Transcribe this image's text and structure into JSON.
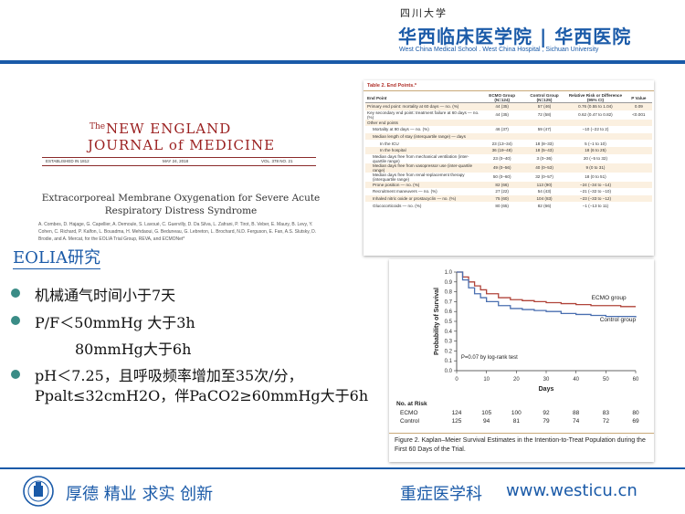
{
  "header": {
    "school_small": "四川大学",
    "hospital_name": "华西临床医学院 | 华西医院",
    "hospital_en": "West China Medical School . West China Hospital , Sichuan University"
  },
  "journal": {
    "the": "The",
    "title_line1": "NEW ENGLAND",
    "title_line2": "JOURNAL of MEDICINE",
    "established": "ESTABLISHED IN 1812",
    "date": "MAY 24, 2018",
    "volume": "VOL. 378  NO. 21",
    "article_title_1": "Extracorporeal Membrane Oxygenation for Severe Acute",
    "article_title_2": "Respiratory Distress Syndrome",
    "authors": "A. Combes, D. Hajage, G. Capellier, A. Demoule, S. Lavoué, C. Guervilly, D. Da Silva, L. Zafrani, P. Tirot, B. Veber, E. Maury, B. Levy, Y. Cohen, C. Richard, P. Kalfon, L. Bouadma, H. Mehdaoui, G. Beduneau, G. Lebreton, L. Brochard, N.D. Ferguson, E. Fan, A.S. Slutsky, D. Brodie, and A. Mercat, for the EOLIA Trial Group, REVA, and ECMONet*"
  },
  "table": {
    "caption": "Table 2. End Points.*",
    "headers": [
      "End Point",
      "ECMO Group (N=124)",
      "Control Group (N=125)",
      "Relative Risk or Difference (95% CI)",
      "P Value"
    ],
    "rows": [
      [
        "Primary end point: mortality at 60 days — no. (%)",
        "44 (35)",
        "57 (46)",
        "0.76 (0.55 to 1.04)",
        "0.09"
      ],
      [
        "Key secondary end point: treatment failure at 60 days — no. (%)",
        "44 (35)",
        "72 (58)",
        "0.62 (0.47 to 0.82)",
        "<0.001"
      ],
      [
        "Other end points",
        "",
        "",
        "",
        ""
      ],
      [
        "Mortality at 90 days — no. (%)",
        "46 (37)",
        "59 (47)",
        "−10 (−22 to 2)",
        ""
      ],
      [
        "Median length of stay (interquartile range) — days",
        "",
        "",
        "",
        ""
      ],
      [
        "In the ICU",
        "23 (13–34)",
        "18 (8–33)",
        "5 (−1 to 10)",
        ""
      ],
      [
        "In the hospital",
        "36 (19–48)",
        "18 (5–43)",
        "18 (6 to 25)",
        ""
      ],
      [
        "Median days free from mechanical ventilation (inter-quartile range)",
        "23 (0–40)",
        "3 (0–36)",
        "20 (−5 to 32)",
        ""
      ],
      [
        "Median days free from vasopressor use (inter-quartile range)",
        "49 (0–56)",
        "40 (0–53)",
        "9 (0 to 31)",
        ""
      ],
      [
        "Median days free from renal-replacement therapy (interquartile range)",
        "50 (0–60)",
        "32 (0–57)",
        "18 (0 to 51)",
        ""
      ],
      [
        "Prone position — no. (%)",
        "82 (66)",
        "113 (90)",
        "−24 (−34 to −14)",
        ""
      ],
      [
        "Recruitment maneuvers — no. (%)",
        "27 (22)",
        "54 (43)",
        "−21 (−32 to −10)",
        ""
      ],
      [
        "Inhaled nitric oxide or prostacyclin — no. (%)",
        "75 (60)",
        "104 (83)",
        "−23 (−33 to −12)",
        ""
      ],
      [
        "Glucocorticoids — no. (%)",
        "80 (65)",
        "82 (66)",
        "−1 (−13 to 11)",
        ""
      ]
    ]
  },
  "chart_data": {
    "type": "line",
    "title": "",
    "xlabel": "Days",
    "ylabel": "Probability of Survival",
    "xlim": [
      0,
      60
    ],
    "ylim": [
      0,
      1.0
    ],
    "x_ticks": [
      0,
      10,
      20,
      30,
      40,
      50,
      60
    ],
    "y_ticks": [
      0.0,
      0.1,
      0.2,
      0.3,
      0.4,
      0.5,
      0.6,
      0.7,
      0.8,
      0.9,
      1.0
    ],
    "annotation": "P=0.07 by log-rank test",
    "series": [
      {
        "name": "ECMO group",
        "color": "#b0443a",
        "x": [
          0,
          2,
          4,
          6,
          8,
          10,
          14,
          18,
          22,
          26,
          30,
          35,
          40,
          45,
          50,
          55,
          60
        ],
        "y": [
          1.0,
          0.95,
          0.9,
          0.86,
          0.82,
          0.78,
          0.74,
          0.72,
          0.71,
          0.7,
          0.69,
          0.68,
          0.67,
          0.66,
          0.66,
          0.65,
          0.65
        ]
      },
      {
        "name": "Control group",
        "color": "#4a6fb0",
        "x": [
          0,
          2,
          4,
          6,
          8,
          10,
          14,
          18,
          22,
          26,
          30,
          35,
          40,
          45,
          50,
          55,
          60
        ],
        "y": [
          1.0,
          0.92,
          0.84,
          0.78,
          0.74,
          0.7,
          0.66,
          0.63,
          0.62,
          0.61,
          0.6,
          0.58,
          0.57,
          0.56,
          0.55,
          0.55,
          0.54
        ]
      }
    ],
    "at_risk": {
      "label": "No. at Risk",
      "rows": [
        {
          "name": "ECMO",
          "values": [
            124,
            105,
            100,
            92,
            88,
            83,
            80
          ]
        },
        {
          "name": "Control",
          "values": [
            125,
            94,
            81,
            79,
            74,
            72,
            69
          ]
        }
      ]
    },
    "caption": "Figure 2. Kaplan–Meier Survival Estimates in the Intention-to-Treat Population during the First 60 Days of the Trial."
  },
  "left": {
    "heading": "EOLIA研究",
    "bullet1": "机械通气时间小于7天",
    "bullet2": "P/F＜50mmHg 大于3h",
    "bullet2b": "80mmHg大于6h",
    "bullet3a": "pH＜7.25，且呼吸频率增加至35次/分，",
    "bullet3b": "Ppalt≤32cmH2O，伴PaCO2≥60mmHg大于6h"
  },
  "footer": {
    "motto": "厚德  精业  求实  创新",
    "dept": "重症医学科",
    "url": "www.westicu.cn"
  },
  "colors": {
    "brand_blue": "#1a5aa8",
    "bullet_teal": "#3a8c86",
    "journal_red": "#9a1f1f"
  }
}
